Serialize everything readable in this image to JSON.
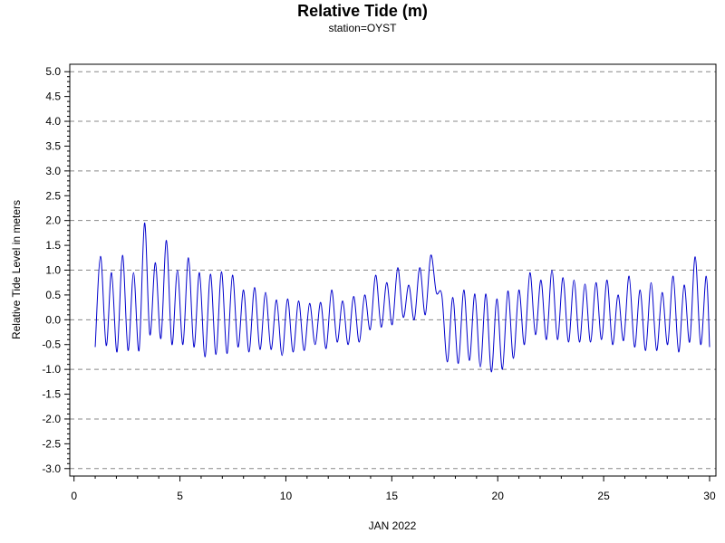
{
  "chart_data": {
    "type": "line",
    "title": "Relative Tide (m)",
    "subtitle": "station=OYST",
    "xlabel": "JAN 2022",
    "ylabel": "Relative Tide Level in meters",
    "xlim": [
      -0.2,
      30.3
    ],
    "ylim": [
      -3.15,
      5.15
    ],
    "x_ticks": [
      0,
      5,
      10,
      15,
      20,
      25,
      30
    ],
    "y_ticks": [
      5.0,
      4.5,
      4.0,
      3.5,
      3.0,
      2.5,
      2.0,
      1.5,
      1.0,
      0.5,
      0.0,
      -0.5,
      -1.0,
      -1.5,
      -2.0,
      -2.5,
      -3.0
    ],
    "y_tick_labels": [
      "5.0",
      "4.5",
      "4.0",
      "3.5",
      "3.0",
      "2.5",
      "2.0",
      "1.5",
      "1.0",
      "0.5",
      "0.0",
      "-0.5",
      "-1.0",
      "-1.5",
      "-2.0",
      "-2.5",
      "-3.0"
    ],
    "grid": {
      "horizontal_dashed_at": [
        5.0,
        4.0,
        3.0,
        2.0,
        1.0,
        0.0,
        -1.0,
        -2.0,
        -3.0
      ]
    },
    "legend": "none",
    "series": [
      {
        "color": "#0000cc",
        "x": [
          1.0,
          1.25,
          1.52,
          1.77,
          2.03,
          2.29,
          2.55,
          2.81,
          3.07,
          3.33,
          3.58,
          3.84,
          4.1,
          4.36,
          4.62,
          4.88,
          5.14,
          5.4,
          5.66,
          5.92,
          6.18,
          6.44,
          6.7,
          6.96,
          7.22,
          7.48,
          7.74,
          8.0,
          8.26,
          8.52,
          8.78,
          9.04,
          9.3,
          9.56,
          9.82,
          10.08,
          10.34,
          10.6,
          10.86,
          11.12,
          11.38,
          11.64,
          11.9,
          12.16,
          12.42,
          12.68,
          12.94,
          13.2,
          13.46,
          13.72,
          13.98,
          14.24,
          14.5,
          14.76,
          15.02,
          15.28,
          15.54,
          15.8,
          16.06,
          16.32,
          16.58,
          16.84,
          17.1,
          17.36,
          17.62,
          17.88,
          18.14,
          18.4,
          18.66,
          18.92,
          19.18,
          19.44,
          19.7,
          19.96,
          20.22,
          20.48,
          20.74,
          21.0,
          21.26,
          21.52,
          21.78,
          22.04,
          22.3,
          22.56,
          22.82,
          23.08,
          23.34,
          23.6,
          23.86,
          24.12,
          24.38,
          24.64,
          24.9,
          25.16,
          25.42,
          25.68,
          25.94,
          26.2,
          26.46,
          26.72,
          26.98,
          27.24,
          27.5,
          27.76,
          28.02,
          28.28,
          28.54,
          28.8,
          29.06,
          29.32,
          29.58,
          29.84,
          30.0
        ],
        "y": [
          -0.55,
          1.28,
          -0.52,
          0.95,
          -0.65,
          1.3,
          -0.62,
          0.95,
          -0.62,
          1.95,
          -0.3,
          1.15,
          -0.38,
          1.6,
          -0.5,
          1.0,
          -0.5,
          1.25,
          -0.55,
          0.95,
          -0.75,
          0.92,
          -0.7,
          0.97,
          -0.68,
          0.9,
          -0.55,
          0.6,
          -0.65,
          0.65,
          -0.6,
          0.55,
          -0.6,
          0.4,
          -0.72,
          0.42,
          -0.65,
          0.38,
          -0.62,
          0.33,
          -0.5,
          0.35,
          -0.58,
          0.6,
          -0.45,
          0.38,
          -0.5,
          0.47,
          -0.45,
          0.5,
          -0.2,
          0.9,
          -0.15,
          0.75,
          -0.1,
          1.05,
          0.05,
          0.7,
          0.0,
          1.05,
          0.1,
          1.3,
          0.55,
          0.5,
          -0.85,
          0.45,
          -0.88,
          0.6,
          -0.82,
          0.52,
          -0.95,
          0.52,
          -1.05,
          0.42,
          -1.0,
          0.58,
          -0.78,
          0.6,
          -0.5,
          0.95,
          -0.3,
          0.8,
          -0.4,
          1.0,
          -0.4,
          0.85,
          -0.45,
          0.8,
          -0.45,
          0.72,
          -0.45,
          0.75,
          -0.4,
          0.8,
          -0.5,
          0.5,
          -0.42,
          0.88,
          -0.55,
          0.6,
          -0.62,
          0.75,
          -0.62,
          0.55,
          -0.5,
          0.88,
          -0.65,
          0.7,
          -0.45,
          1.27,
          -0.5,
          0.88,
          -0.55
        ]
      }
    ]
  }
}
